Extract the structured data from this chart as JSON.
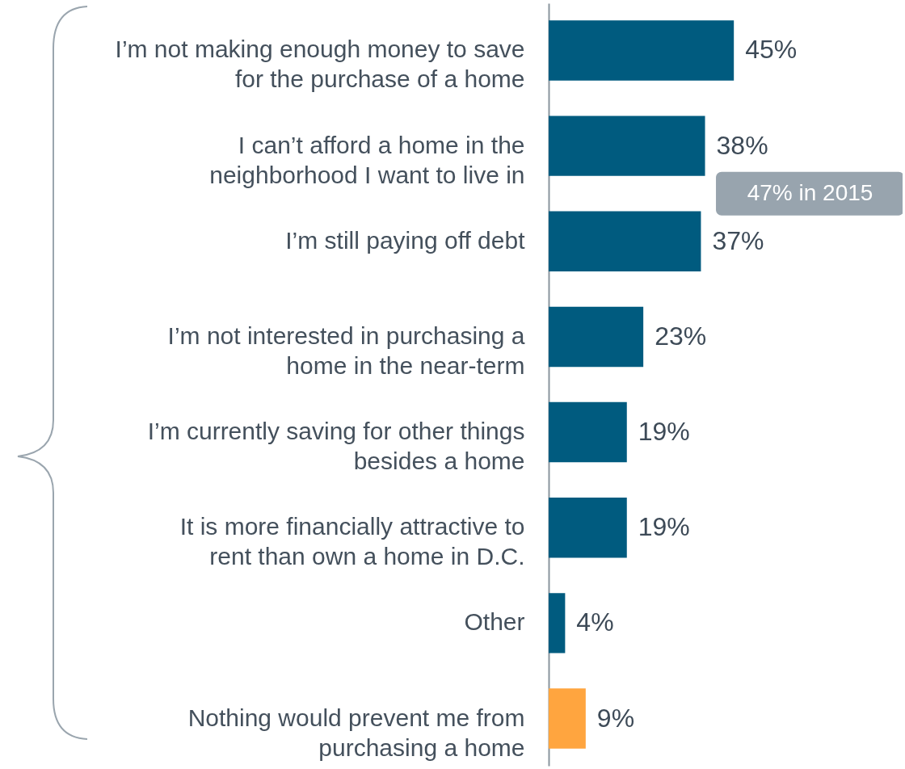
{
  "chart_data": {
    "type": "bar",
    "orientation": "horizontal",
    "categories": [
      "I’m not making enough money to save for the purchase of a home",
      "I can’t afford a home in the neighborhood I want to live in",
      "I’m still paying off debt",
      "I’m not interested in purchasing a home in the near-term",
      "I’m currently saving for other things besides a home",
      "It is more financially attractive to rent than own a home in D.C.",
      "Other",
      "Nothing would prevent me from purchasing a home"
    ],
    "values": [
      45,
      38,
      37,
      23,
      19,
      19,
      4,
      9
    ],
    "value_labels": [
      "45%",
      "38%",
      "37%",
      "23%",
      "19%",
      "19%",
      "4%",
      "9%"
    ],
    "colors": [
      "#005b7f",
      "#005b7f",
      "#005b7f",
      "#005b7f",
      "#005b7f",
      "#005b7f",
      "#005b7f",
      "#ffa53f"
    ],
    "xlim": [
      0,
      86
    ],
    "tick_labels": "y",
    "annotations": [
      {
        "text": "47% in 2015",
        "x": 38,
        "y": "I can’t afford a home in the neighborhood I want to live in"
      }
    ]
  }
}
